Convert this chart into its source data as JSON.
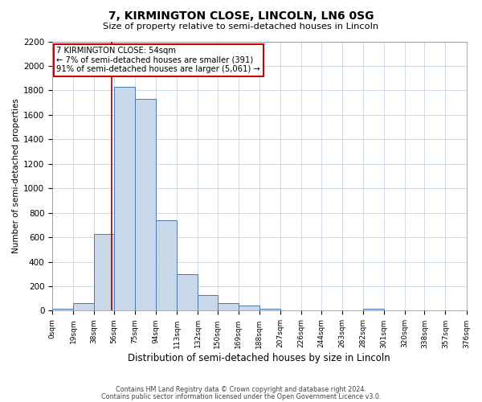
{
  "title": "7, KIRMINGTON CLOSE, LINCOLN, LN6 0SG",
  "subtitle": "Size of property relative to semi-detached houses in Lincoln",
  "xlabel": "Distribution of semi-detached houses by size in Lincoln",
  "ylabel": "Number of semi-detached properties",
  "bin_edges": [
    0,
    19,
    38,
    56,
    75,
    94,
    113,
    132,
    150,
    169,
    188,
    207,
    226,
    244,
    263,
    282,
    301,
    320,
    338,
    357,
    376
  ],
  "bin_counts": [
    15,
    60,
    630,
    1830,
    1730,
    740,
    300,
    130,
    65,
    40,
    15,
    0,
    0,
    0,
    0,
    15,
    0,
    0,
    0,
    0
  ],
  "bar_color": "#c8d8e8",
  "bar_edge_color": "#4a7ab5",
  "property_size": 54,
  "property_line_color": "#a00000",
  "annotation_line1": "7 KIRMINGTON CLOSE: 54sqm",
  "annotation_line2": "← 7% of semi-detached houses are smaller (391)",
  "annotation_line3": "91% of semi-detached houses are larger (5,061) →",
  "annotation_box_edge_color": "#cc0000",
  "ylim": [
    0,
    2200
  ],
  "yticks": [
    0,
    200,
    400,
    600,
    800,
    1000,
    1200,
    1400,
    1600,
    1800,
    2000,
    2200
  ],
  "tick_labels": [
    "0sqm",
    "19sqm",
    "38sqm",
    "56sqm",
    "75sqm",
    "94sqm",
    "113sqm",
    "132sqm",
    "150sqm",
    "169sqm",
    "188sqm",
    "207sqm",
    "226sqm",
    "244sqm",
    "263sqm",
    "282sqm",
    "301sqm",
    "320sqm",
    "338sqm",
    "357sqm",
    "376sqm"
  ],
  "footer_line1": "Contains HM Land Registry data © Crown copyright and database right 2024.",
  "footer_line2": "Contains public sector information licensed under the Open Government Licence v3.0.",
  "background_color": "#ffffff",
  "grid_color": "#c8d4e4"
}
